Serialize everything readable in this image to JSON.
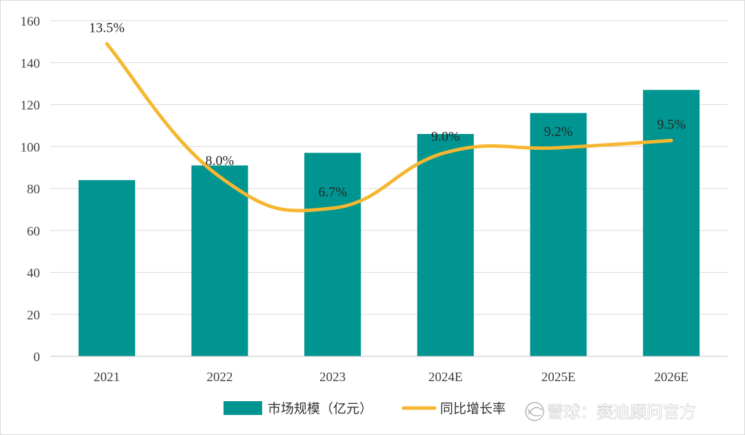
{
  "chart_data": {
    "type": "bar",
    "categories": [
      "2021",
      "2022",
      "2023",
      "2024E",
      "2025E",
      "2026E"
    ],
    "series": [
      {
        "name": "市场规模（亿元）",
        "type": "bar",
        "values": [
          84,
          91,
          97,
          106,
          116,
          127
        ]
      },
      {
        "name": "同比增长率",
        "type": "line",
        "values": [
          13.5,
          8.0,
          6.7,
          9.0,
          9.2,
          9.5
        ],
        "labels": [
          "13.5%",
          "8.0%",
          "6.7%",
          "9.0%",
          "9.2%",
          "9.5%"
        ]
      }
    ],
    "ylim": [
      0,
      160
    ],
    "yticks": [
      "0",
      "20",
      "40",
      "60",
      "80",
      "100",
      "120",
      "140",
      "160"
    ],
    "grid": true,
    "legend": "bottom",
    "colors": {
      "bar": "#009590",
      "line": "#f5b731",
      "grid": "#d9d9d9"
    }
  },
  "watermark": {
    "text": "雪球：赛迪顾问官方",
    "icon": "snowball-logo-icon"
  }
}
